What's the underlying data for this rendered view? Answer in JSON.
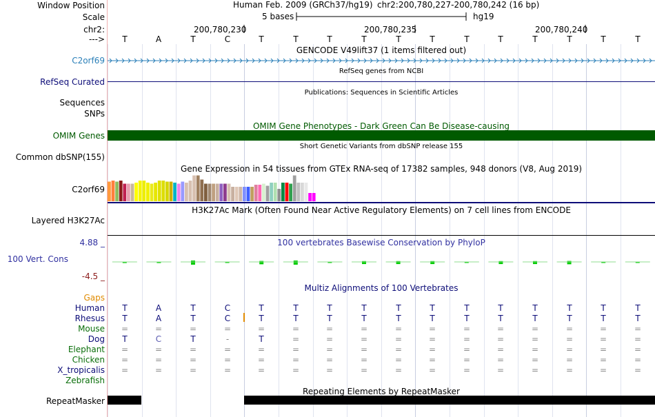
{
  "header": {
    "window_position_label": "Window Position",
    "scale_label": "Scale",
    "chr_label": "chr2:",
    "strand_label": "--->",
    "assembly": "Human Feb. 2009 (GRCh37/hg19)",
    "position": "chr2:200,780,227-200,780,242 (16 bp)",
    "scale_text": "5 bases",
    "scale_db": "hg19",
    "coords": [
      "200,780,230",
      "200,780,235",
      "200,780,240"
    ],
    "bases": [
      "T",
      "A",
      "T",
      "C",
      "T",
      "T",
      "T",
      "T",
      "T",
      "T",
      "T",
      "T",
      "T",
      "T",
      "T",
      "T"
    ]
  },
  "tracks": {
    "gencode": {
      "label": "C2orf69",
      "title": "GENCODE V49lift37 (1 items filtered out)",
      "color": "#2a7fb8"
    },
    "refseq": {
      "label": "RefSeq Curated",
      "title": "RefSeq genes from NCBI",
      "color": "#0c0c78"
    },
    "publications": {
      "title": "Publications: Sequences in Scientific Articles",
      "label_sequences": "Sequences",
      "label_snps": "SNPs"
    },
    "omim": {
      "label": "OMIM Genes",
      "title": "OMIM Gene Phenotypes - Dark Green Can Be Disease-causing",
      "color": "#005a00"
    },
    "dbsnp": {
      "label": "Common dbSNP(155)",
      "title": "Short Genetic Variants from dbSNP release 155"
    },
    "gtex": {
      "label": "C2orf69",
      "title": "Gene Expression in 54 tissues from GTEx RNA-seq of 17382 samples, 948 donors (V8, Aug 2019)",
      "bar_levels": [
        0.95,
        1,
        0.95,
        1,
        0.85,
        0.85,
        0.85,
        0.9,
        1,
        1,
        0.9,
        0.85,
        0.9,
        1,
        1,
        0.95,
        0.95,
        0.9,
        0.85,
        0.95,
        0.9,
        1,
        1.25,
        1.25,
        1.05,
        0.85,
        0.85,
        0.85,
        0.85,
        0.85,
        0.85,
        0.85,
        0.7,
        0.7,
        0.7,
        0.7,
        0.7,
        0.7,
        0.8,
        0.8,
        0.85,
        0.75,
        0.9,
        0.9,
        0.6,
        0.9,
        0.9,
        0.85,
        1.25,
        0.9,
        0.9,
        0.9,
        0.4,
        0.4
      ],
      "bar_colors": [
        "#ff9a3c",
        "#ff7f3c",
        "#8fbc5f",
        "#8b1a1a",
        "#c02050",
        "#e8a0b0",
        "#c8b89c",
        "#ffff00",
        "#f5f500",
        "#eeee00",
        "#f0f000",
        "#eaea1c",
        "#e6e600",
        "#e0e000",
        "#dddd00",
        "#d6d600",
        "#ccb000",
        "#00b4c8",
        "#ee82ee",
        "#9999ff",
        "#d8c0b0",
        "#d8c0b0",
        "#d8c0b0",
        "#a08060",
        "#8f6f4f",
        "#7f5f3f",
        "#a08870",
        "#bfa080",
        "#c8b0a0",
        "#9060c0",
        "#8e3c8e",
        "#d8c0b0",
        "#c8b0a0",
        "#e0c8b8",
        "#d0b8a8",
        "#8090ff",
        "#4060ff",
        "#c0a060",
        "#e080a0",
        "#ff69b4",
        "#d8f0d0",
        "#a0a0a0",
        "#8fd0c0",
        "#b0e0b0",
        "#909090",
        "#008b45",
        "#ff0000",
        "#30a050",
        "#a0a0a0",
        "#c0c0c0",
        "#d8d8d8",
        "#e8e8e8",
        "#ff00ff",
        "#ff00ff"
      ]
    },
    "h3k27ac": {
      "label": "Layered H3K27Ac",
      "title": "H3K27Ac Mark (Often Found Near Active Regulatory Elements) on 7 cell lines from ENCODE"
    },
    "conservation": {
      "label": "100 Vert. Cons",
      "max": "4.88 _",
      "min": "-4.5 _",
      "title": "100 vertebrates Basewise Conservation by PhyloP",
      "values": [
        0.05,
        0.05,
        0.25,
        0.02,
        0.2,
        0.25,
        0.0,
        0.18,
        0.18,
        0.18,
        0.0,
        0.18,
        0.18,
        0.2,
        0.0,
        0.0
      ],
      "color": "#00cc00"
    },
    "multiz": {
      "title": "Multiz Alignments of 100 Vertebrates",
      "gaps_label": "Gaps",
      "species": [
        {
          "name": "Human",
          "color": "#0c0c78",
          "bases": [
            "T",
            "A",
            "T",
            "C",
            "T",
            "T",
            "T",
            "T",
            "T",
            "T",
            "T",
            "T",
            "T",
            "T",
            "T",
            "T"
          ]
        },
        {
          "name": "Rhesus",
          "color": "#0c0c78",
          "bases": [
            "T",
            "A",
            "T",
            "C",
            "T",
            "T",
            "T",
            "T",
            "T",
            "T",
            "T",
            "T",
            "T",
            "T",
            "T",
            "T"
          ]
        },
        {
          "name": "Mouse",
          "color": "#0a6e0a",
          "bases": [
            "=",
            "=",
            "=",
            "=",
            "=",
            "=",
            "=",
            "=",
            "=",
            "=",
            "=",
            "=",
            "=",
            "=",
            "=",
            "="
          ]
        },
        {
          "name": "Dog",
          "color": "#0c0c78",
          "bases": [
            "T",
            "C",
            "T",
            "-",
            "T",
            "=",
            "=",
            "=",
            "=",
            "=",
            "=",
            "=",
            "=",
            "=",
            "=",
            "="
          ]
        },
        {
          "name": "Elephant",
          "color": "#0a6e0a",
          "bases": [
            "=",
            "=",
            "=",
            "=",
            "=",
            "=",
            "=",
            "=",
            "=",
            "=",
            "=",
            "=",
            "=",
            "=",
            "=",
            "="
          ]
        },
        {
          "name": "Chicken",
          "color": "#0a6e0a",
          "bases": [
            "=",
            "=",
            "=",
            "=",
            "=",
            "=",
            "=",
            "=",
            "=",
            "=",
            "=",
            "=",
            "=",
            "=",
            "=",
            "="
          ]
        },
        {
          "name": "X_tropicalis",
          "color": "#0c0c78",
          "bases": [
            "=",
            "=",
            "=",
            "=",
            "=",
            "=",
            "=",
            "=",
            "=",
            "=",
            "=",
            "=",
            "=",
            "=",
            "=",
            "="
          ]
        },
        {
          "name": "Zebrafish",
          "color": "#0a6e0a",
          "bases": [
            "",
            "",
            "",
            "",
            "",
            "",
            "",
            "",
            "",
            "",
            "",
            "",
            "",
            "",
            "",
            ""
          ]
        }
      ]
    },
    "repeatmasker": {
      "label": "RepeatMasker",
      "title": "Repeating Elements by RepeatMasker"
    }
  }
}
